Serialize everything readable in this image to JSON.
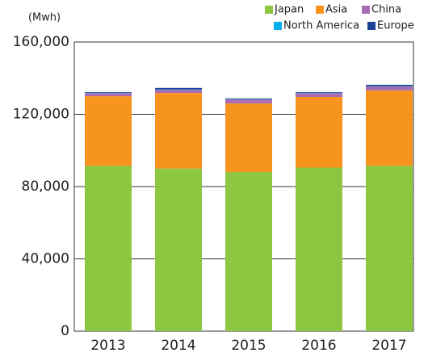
{
  "chart_data": {
    "type": "stacked_bar",
    "unit_label": "(Mwh)",
    "categories": [
      "2013",
      "2014",
      "2015",
      "2016",
      "2017"
    ],
    "series": [
      {
        "name": "Japan",
        "color": "#8dc641",
        "values": [
          91500,
          90000,
          88000,
          90500,
          91500
        ]
      },
      {
        "name": "Asia",
        "color": "#f7941d",
        "values": [
          38500,
          41800,
          38000,
          39100,
          41700
        ]
      },
      {
        "name": "China",
        "color": "#a86db5",
        "values": [
          1800,
          1800,
          2300,
          2200,
          2200
        ]
      },
      {
        "name": "North America",
        "color": "#00b0e8",
        "values": [
          200,
          200,
          200,
          200,
          200
        ]
      },
      {
        "name": "Europe",
        "color": "#1b3f94",
        "values": [
          300,
          800,
          300,
          300,
          700
        ]
      }
    ],
    "ylim": [
      0,
      160000
    ],
    "yticks": [
      0,
      {
        "value": 40000,
        "label": "40,000"
      },
      {
        "value": 80000,
        "label": "80,000"
      },
      {
        "value": 120000,
        "label": "120,000"
      },
      {
        "value": 160000,
        "label": "160,000"
      }
    ],
    "grid": true
  }
}
